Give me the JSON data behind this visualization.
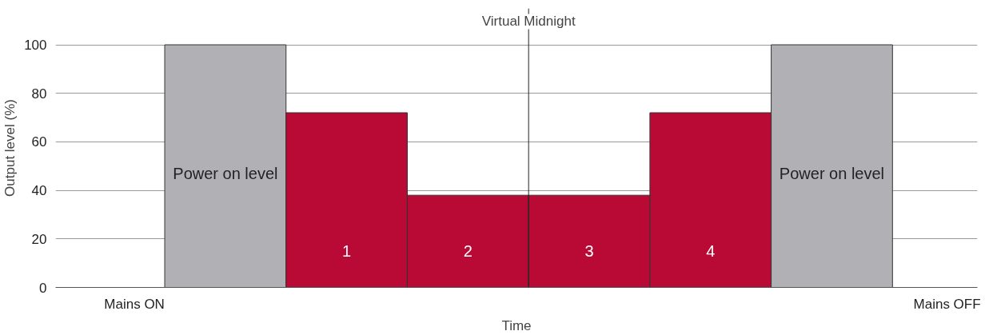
{
  "chart_data": {
    "type": "bar",
    "categories": [
      null,
      null,
      null,
      null,
      null,
      null
    ],
    "values": [
      100,
      72,
      38,
      38,
      72,
      100
    ],
    "colors": [
      "#b1b0b5",
      "#b90a36",
      "#b90a36",
      "#b90a36",
      "#b90a36",
      "#b1b0b5"
    ],
    "xlabel": "Time",
    "ylabel": "Output level (%)",
    "ylim": [
      0,
      115
    ],
    "yticks": [
      0,
      20,
      40,
      60,
      80,
      100
    ],
    "grid": "y",
    "annotations": [
      "Power on level",
      "1",
      "2",
      "3",
      "4",
      "Power on level",
      "Mains ON",
      "Mains OFF",
      "Virtual Midnight"
    ]
  }
}
